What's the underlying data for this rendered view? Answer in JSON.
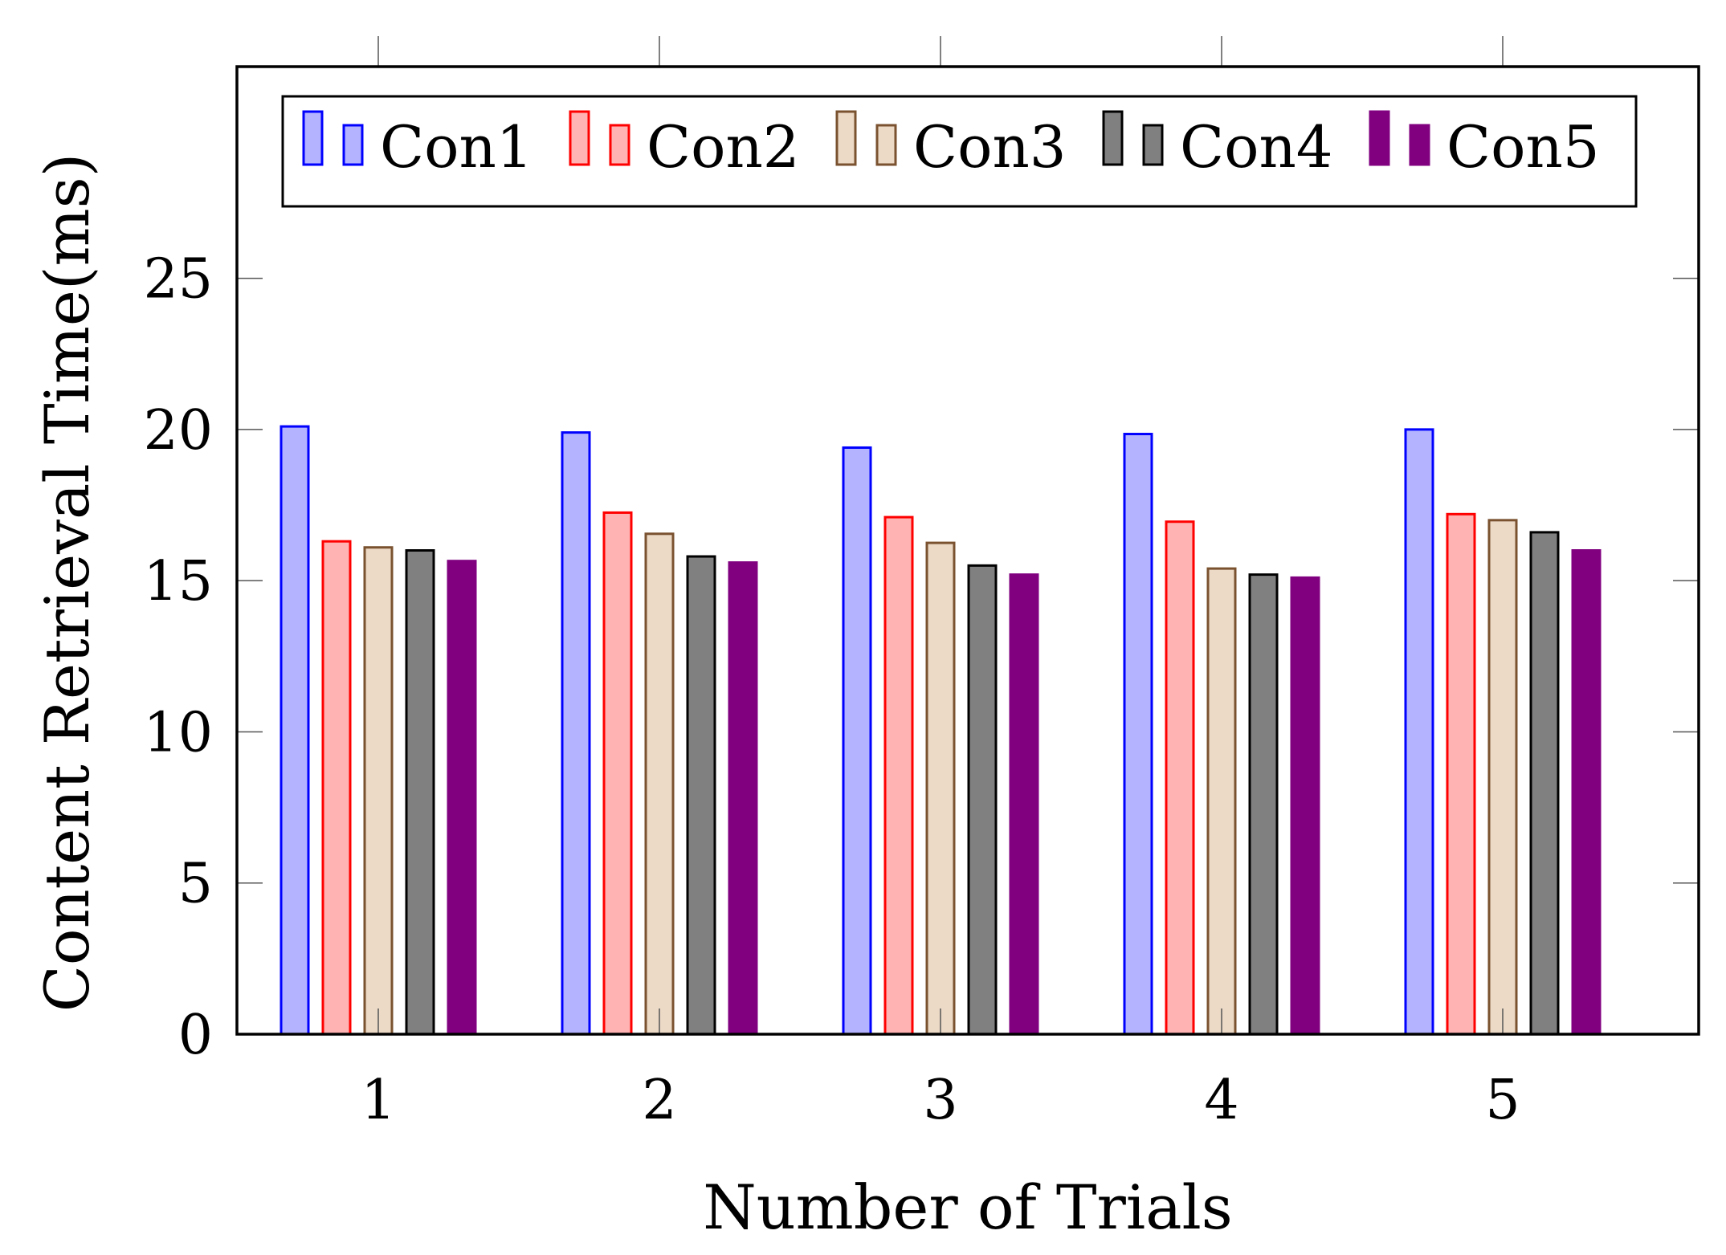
{
  "chart_data": {
    "type": "bar",
    "title": "",
    "xlabel": "Number of Trials",
    "ylabel": "Content Retrieval Time(ms)",
    "categories": [
      "1",
      "2",
      "3",
      "4",
      "5"
    ],
    "ylim": [
      0,
      32
    ],
    "yticks": [
      0,
      5,
      10,
      15,
      20,
      25
    ],
    "yticks_labels": [
      "0",
      "5",
      "10",
      "15",
      "20",
      "25"
    ],
    "grid": false,
    "legend_position": "top",
    "series": [
      {
        "name": "Con1",
        "values": [
          20.1,
          19.9,
          19.4,
          19.85,
          20.0
        ],
        "fill": "#b3b3ff",
        "stroke": "#0000ff"
      },
      {
        "name": "Con2",
        "values": [
          16.3,
          17.25,
          17.1,
          16.95,
          17.2
        ],
        "fill": "#ffb3b3",
        "stroke": "#ff0000"
      },
      {
        "name": "Con3",
        "values": [
          16.1,
          16.55,
          16.25,
          15.4,
          17.0
        ],
        "fill": "#ecd9c6",
        "stroke": "#7a5230"
      },
      {
        "name": "Con4",
        "values": [
          16.0,
          15.8,
          15.5,
          15.2,
          16.6
        ],
        "fill": "#808080",
        "stroke": "#000000"
      },
      {
        "name": "Con5",
        "values": [
          15.65,
          15.6,
          15.2,
          15.1,
          16.0
        ],
        "fill": "#800080",
        "stroke": "#800080"
      }
    ]
  }
}
